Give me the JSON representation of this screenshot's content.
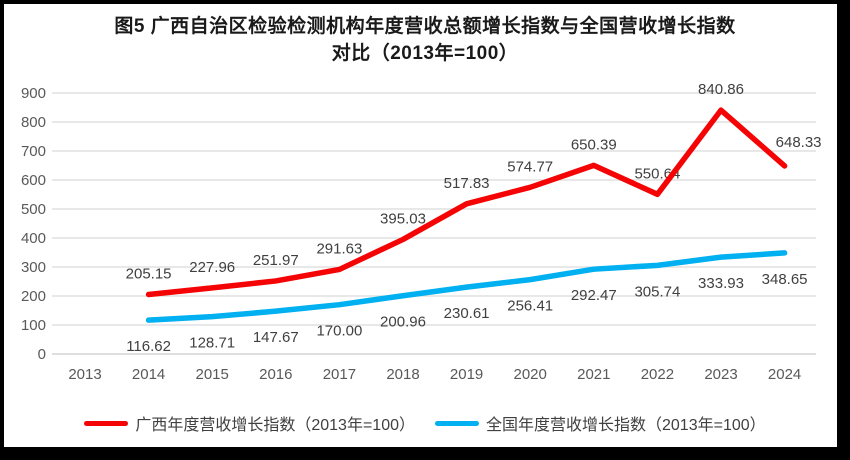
{
  "title": "图5  广西自治区检验检测机构年度营收总额增长指数与全国营收增长指数对比（2013年=100）",
  "window": {
    "background": "#ffffff",
    "border_color": "#000000"
  },
  "chart_data": {
    "type": "line",
    "title": "图5  广西自治区检验检测机构年度营收总额增长指数与全国营收增长指数对比（2013年=100）",
    "categories": [
      "2013",
      "2014",
      "2015",
      "2016",
      "2017",
      "2018",
      "2019",
      "2020",
      "2021",
      "2022",
      "2023",
      "2024"
    ],
    "series": [
      {
        "name": "广西年度营收增长指数（2013年=100）",
        "color": "#f40404",
        "start_category_index": 1,
        "values": [
          205.15,
          227.96,
          251.97,
          291.63,
          395.03,
          517.83,
          574.77,
          650.39,
          550.64,
          840.86,
          648.33
        ],
        "labels": [
          "205.15",
          "227.96",
          "251.97",
          "291.63",
          "395.03",
          "517.83",
          "574.77",
          "650.39",
          "550.64",
          "840.86",
          "648.33"
        ]
      },
      {
        "name": "全国年度营收增长指数（2013年=100）",
        "color": "#00b0f0",
        "start_category_index": 1,
        "values": [
          116.62,
          128.71,
          147.67,
          170.0,
          200.96,
          230.61,
          256.41,
          292.47,
          305.74,
          333.93,
          348.65
        ],
        "labels": [
          "116.62",
          "128.71",
          "147.67",
          "170.00",
          "200.96",
          "230.61",
          "256.41",
          "292.47",
          "305.74",
          "333.93",
          "348.65"
        ]
      }
    ],
    "ylim": [
      0,
      900
    ],
    "y_ticks": [
      0,
      100,
      200,
      300,
      400,
      500,
      600,
      700,
      800,
      900
    ],
    "grid": true,
    "gridline_color": "#d9d9d9",
    "axis_text_color": "#595959",
    "data_label_color": "#404040",
    "legend_position": "bottom"
  }
}
